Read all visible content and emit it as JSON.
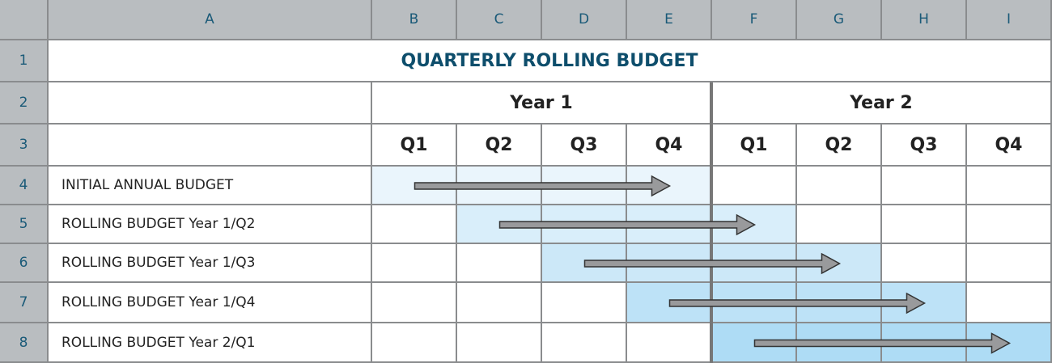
{
  "columns": [
    "A",
    "B",
    "C",
    "D",
    "E",
    "F",
    "G",
    "H",
    "I"
  ],
  "row_numbers": [
    "1",
    "2",
    "3",
    "4",
    "5",
    "6",
    "7",
    "8"
  ],
  "title": "QUARTERLY ROLLING BUDGET",
  "years": [
    "Year 1",
    "Year 2"
  ],
  "quarters": [
    "Q1",
    "Q2",
    "Q3",
    "Q4",
    "Q1",
    "Q2",
    "Q3",
    "Q4"
  ],
  "budget_rows": [
    {
      "label": "INITIAL ANNUAL BUDGET",
      "span": "B-E",
      "color": "#eaf5fc"
    },
    {
      "label": "ROLLING BUDGET Year 1/Q2",
      "span": "C-F",
      "color": "#d9eefa"
    },
    {
      "label": "ROLLING BUDGET Year 1/Q3",
      "span": "D-G",
      "color": "#cce8f8"
    },
    {
      "label": "ROLLING BUDGET Year 1/Q4",
      "span": "E-H",
      "color": "#bde2f7"
    },
    {
      "label": "ROLLING BUDGET Year 2/Q1",
      "span": "F-I",
      "color": "#aedcf5"
    }
  ],
  "colors": {
    "header": "#b9bdc0",
    "title": "#0e4e6c",
    "arrow": "#999a9c"
  }
}
